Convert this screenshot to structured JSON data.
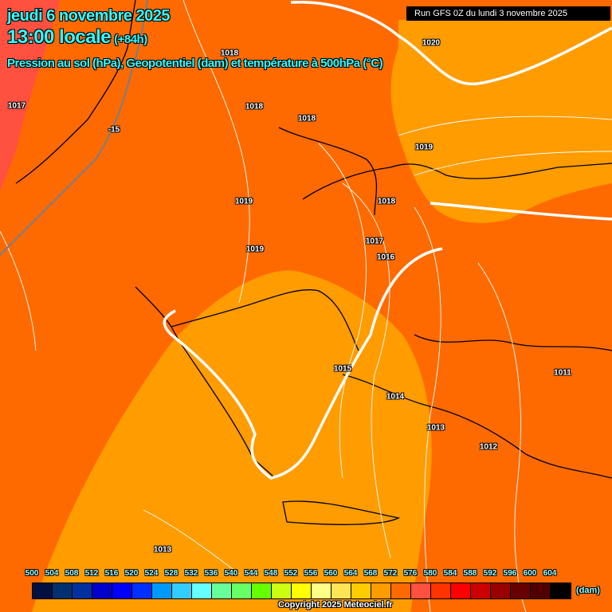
{
  "header": {
    "date": "jeudi 6 novembre 2025",
    "time": "13:00 locale",
    "lead": "(+84h)",
    "subtitle": "Pression au sol (hPa), Geopotentiel (dam) et température à 500hPa (°C)",
    "run": "Run GFS 0Z du lundi 3 novembre 2025"
  },
  "map": {
    "field_colors": {
      "564": "#ff9c00",
      "568": "#ff6a00",
      "572": "#ff5040"
    },
    "pressure_labels": [
      "1018",
      "1020",
      "1017",
      "1018",
      "1018",
      "1019",
      "1019",
      "1018",
      "1017",
      "1016",
      "1019",
      "1015",
      "1014",
      "1013",
      "1012",
      "1011",
      "1013"
    ],
    "temperature_labels": [
      "-15"
    ]
  },
  "legend": {
    "values": [
      "500",
      "504",
      "508",
      "512",
      "516",
      "520",
      "524",
      "528",
      "532",
      "536",
      "540",
      "544",
      "548",
      "552",
      "556",
      "560",
      "564",
      "568",
      "572",
      "576",
      "580",
      "584",
      "588",
      "592",
      "596",
      "600",
      "604"
    ],
    "colors": [
      "#001040",
      "#003070",
      "#0030a0",
      "#0000cc",
      "#0000ff",
      "#0030ff",
      "#0099ff",
      "#33ccff",
      "#66ffff",
      "#66ff99",
      "#66ff66",
      "#66ff00",
      "#ccff11",
      "#ffff00",
      "#ffff88",
      "#ffe555",
      "#ffcc00",
      "#ff9c00",
      "#ff6a00",
      "#ff5040",
      "#ff3300",
      "#ff0000",
      "#cc0000",
      "#990000",
      "#660000",
      "#500000",
      "#000000"
    ],
    "unit": "(dam)"
  },
  "copyright": "Copyright 2025 Meteociel.fr"
}
